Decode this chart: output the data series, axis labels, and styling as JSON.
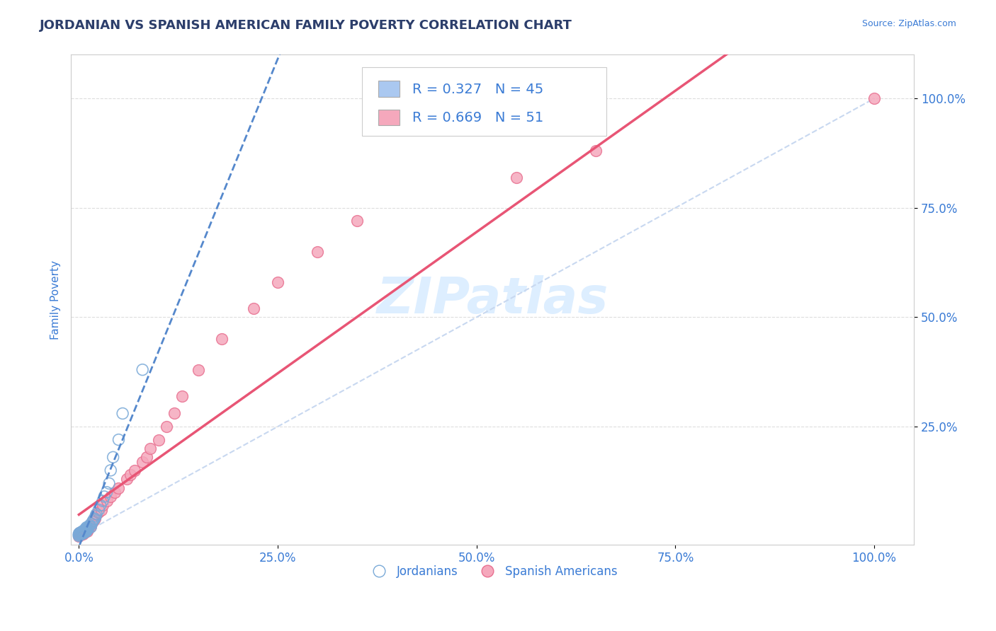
{
  "title": "JORDANIAN VS SPANISH AMERICAN FAMILY POVERTY CORRELATION CHART",
  "source_text": "Source: ZipAtlas.com",
  "ylabel": "Family Poverty",
  "xlim": [
    -0.01,
    1.05
  ],
  "ylim": [
    -0.02,
    1.1
  ],
  "xtick_labels": [
    "0.0%",
    "25.0%",
    "50.0%",
    "75.0%",
    "100.0%"
  ],
  "xtick_vals": [
    0.0,
    0.25,
    0.5,
    0.75,
    1.0
  ],
  "ytick_labels": [
    "100.0%",
    "75.0%",
    "50.0%",
    "25.0%"
  ],
  "ytick_vals": [
    1.0,
    0.75,
    0.5,
    0.25
  ],
  "title_color": "#2c3e6b",
  "axis_label_color": "#3a7bd5",
  "tick_color": "#3a7bd5",
  "watermark_text": "ZIPatlas",
  "jordanian_color": "#aac8f0",
  "spanish_color": "#f5a8bc",
  "jordanian_edge": "#7aaad8",
  "spanish_edge": "#e87090",
  "ref_line_color": "#c8d8f0",
  "jordanian_line_color": "#5588cc",
  "spanish_line_color": "#e85575",
  "background_color": "#ffffff",
  "plot_bg_color": "#ffffff",
  "grid_color": "#dddddd",
  "legend_colors": [
    "#aac8f0",
    "#f5a8bc"
  ],
  "legend_N_color": "#3a7bd5",
  "legend_text_color": "#2c3e6b",
  "title_fontsize": 13,
  "axis_fontsize": 11,
  "tick_fontsize": 12,
  "legend_fontsize": 14,
  "watermark_color": "#ddeeff",
  "watermark_fontsize": 52,
  "jordanian_x": [
    0.0,
    0.0,
    0.0,
    0.001,
    0.001,
    0.002,
    0.003,
    0.003,
    0.004,
    0.004,
    0.005,
    0.005,
    0.006,
    0.006,
    0.007,
    0.007,
    0.008,
    0.008,
    0.009,
    0.009,
    0.01,
    0.01,
    0.011,
    0.012,
    0.013,
    0.014,
    0.015,
    0.016,
    0.017,
    0.018,
    0.019,
    0.02,
    0.021,
    0.022,
    0.025,
    0.027,
    0.03,
    0.032,
    0.035,
    0.038,
    0.04,
    0.043,
    0.05,
    0.055,
    0.08
  ],
  "jordanian_y": [
    0.0,
    0.002,
    0.005,
    0.003,
    0.007,
    0.005,
    0.004,
    0.008,
    0.006,
    0.01,
    0.005,
    0.01,
    0.007,
    0.012,
    0.008,
    0.013,
    0.009,
    0.015,
    0.01,
    0.018,
    0.012,
    0.02,
    0.015,
    0.018,
    0.022,
    0.025,
    0.02,
    0.028,
    0.032,
    0.035,
    0.038,
    0.04,
    0.045,
    0.05,
    0.06,
    0.07,
    0.08,
    0.09,
    0.1,
    0.12,
    0.15,
    0.18,
    0.22,
    0.28,
    0.38
  ],
  "spanish_x": [
    0.0,
    0.0,
    0.001,
    0.001,
    0.002,
    0.003,
    0.004,
    0.005,
    0.005,
    0.006,
    0.007,
    0.008,
    0.008,
    0.009,
    0.01,
    0.011,
    0.012,
    0.013,
    0.014,
    0.015,
    0.016,
    0.017,
    0.018,
    0.02,
    0.022,
    0.025,
    0.028,
    0.03,
    0.035,
    0.04,
    0.045,
    0.05,
    0.06,
    0.065,
    0.07,
    0.08,
    0.085,
    0.09,
    0.1,
    0.11,
    0.12,
    0.13,
    0.15,
    0.18,
    0.22,
    0.25,
    0.3,
    0.35,
    0.55,
    0.65,
    1.0
  ],
  "spanish_y": [
    0.0,
    0.005,
    0.002,
    0.008,
    0.006,
    0.004,
    0.007,
    0.005,
    0.01,
    0.008,
    0.007,
    0.01,
    0.015,
    0.012,
    0.01,
    0.015,
    0.018,
    0.02,
    0.025,
    0.022,
    0.028,
    0.032,
    0.035,
    0.04,
    0.05,
    0.055,
    0.06,
    0.07,
    0.08,
    0.09,
    0.1,
    0.11,
    0.13,
    0.14,
    0.15,
    0.17,
    0.18,
    0.2,
    0.22,
    0.25,
    0.28,
    0.32,
    0.38,
    0.45,
    0.52,
    0.58,
    0.65,
    0.72,
    0.82,
    0.88,
    1.0
  ]
}
